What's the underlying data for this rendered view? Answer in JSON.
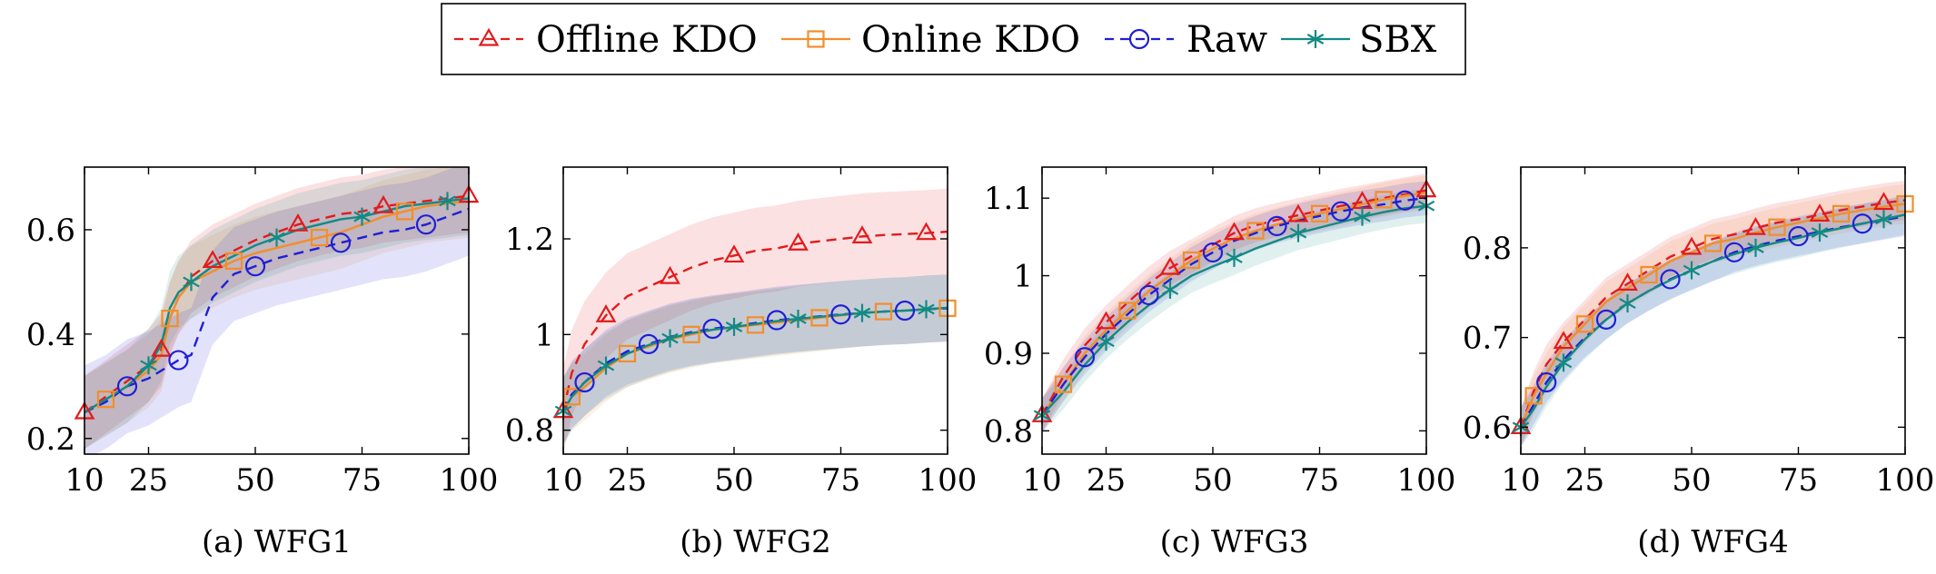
{
  "legend": {
    "items": [
      {
        "label": "Offline KDO",
        "color": "#e31a1c",
        "marker": "triangle",
        "dash": "dashed"
      },
      {
        "label": "Online KDO",
        "color": "#f28e2b",
        "marker": "square",
        "dash": "solid"
      },
      {
        "label": "Raw",
        "color": "#1f1fd6",
        "marker": "circle",
        "dash": "dashed"
      },
      {
        "label": "SBX",
        "color": "#138a84",
        "marker": "asterisk",
        "dash": "solid"
      }
    ]
  },
  "chart_data": [
    {
      "type": "line",
      "caption": "(a) WFG1",
      "xlim": [
        10,
        100
      ],
      "ylim": [
        0.17,
        0.72
      ],
      "xticks": [
        10,
        25,
        50,
        75,
        100
      ],
      "yticks": [
        0.2,
        0.4,
        0.6
      ],
      "x": [
        10,
        15,
        20,
        25,
        28,
        30,
        32,
        35,
        40,
        45,
        50,
        55,
        60,
        65,
        70,
        75,
        80,
        85,
        90,
        95,
        100
      ],
      "series": [
        {
          "name": "Offline KDO",
          "values": [
            0.25,
            0.28,
            0.31,
            0.34,
            0.37,
            0.43,
            0.47,
            0.51,
            0.54,
            0.56,
            0.58,
            0.595,
            0.61,
            0.62,
            0.63,
            0.635,
            0.645,
            0.65,
            0.655,
            0.66,
            0.665
          ],
          "band": 0.07
        },
        {
          "name": "Online KDO",
          "values": [
            0.25,
            0.275,
            0.3,
            0.33,
            0.36,
            0.43,
            0.47,
            0.5,
            0.52,
            0.54,
            0.555,
            0.565,
            0.575,
            0.585,
            0.595,
            0.61,
            0.625,
            0.635,
            0.645,
            0.65,
            0.655
          ],
          "band": 0.07
        },
        {
          "name": "Raw",
          "values": [
            0.25,
            0.27,
            0.3,
            0.315,
            0.33,
            0.34,
            0.35,
            0.36,
            0.47,
            0.515,
            0.53,
            0.545,
            0.555,
            0.565,
            0.575,
            0.585,
            0.595,
            0.6,
            0.61,
            0.625,
            0.64
          ],
          "band": 0.09
        },
        {
          "name": "SBX",
          "values": [
            0.25,
            0.275,
            0.3,
            0.34,
            0.38,
            0.45,
            0.48,
            0.5,
            0.53,
            0.55,
            0.57,
            0.585,
            0.6,
            0.61,
            0.62,
            0.625,
            0.635,
            0.645,
            0.65,
            0.655,
            0.66
          ],
          "band": 0.07
        }
      ]
    },
    {
      "type": "line",
      "caption": "(b) WFG2",
      "xlim": [
        10,
        100
      ],
      "ylim": [
        0.75,
        1.35
      ],
      "xticks": [
        10,
        25,
        50,
        75,
        100
      ],
      "yticks": [
        0.8,
        1,
        1.2
      ],
      "x": [
        10,
        12,
        15,
        20,
        25,
        30,
        35,
        40,
        45,
        50,
        55,
        60,
        65,
        70,
        75,
        80,
        85,
        90,
        95,
        100
      ],
      "series": [
        {
          "name": "Offline KDO",
          "values": [
            0.84,
            0.92,
            0.98,
            1.04,
            1.08,
            1.1,
            1.12,
            1.14,
            1.155,
            1.165,
            1.175,
            1.18,
            1.19,
            1.195,
            1.2,
            1.205,
            1.208,
            1.21,
            1.212,
            1.215
          ],
          "band": 0.09
        },
        {
          "name": "Online KDO",
          "values": [
            0.84,
            0.87,
            0.89,
            0.93,
            0.96,
            0.975,
            0.99,
            1.0,
            1.01,
            1.015,
            1.02,
            1.025,
            1.03,
            1.035,
            1.04,
            1.045,
            1.048,
            1.05,
            1.053,
            1.055
          ],
          "band": 0.07
        },
        {
          "name": "Raw",
          "values": [
            0.84,
            0.875,
            0.9,
            0.94,
            0.965,
            0.98,
            0.995,
            1.005,
            1.012,
            1.018,
            1.024,
            1.03,
            1.034,
            1.038,
            1.042,
            1.045,
            1.048,
            1.05,
            1.053,
            1.055
          ],
          "band": 0.07
        },
        {
          "name": "SBX",
          "values": [
            0.84,
            0.87,
            0.9,
            0.935,
            0.96,
            0.978,
            0.992,
            1.003,
            1.01,
            1.016,
            1.022,
            1.028,
            1.033,
            1.037,
            1.041,
            1.045,
            1.048,
            1.05,
            1.053,
            1.056
          ],
          "band": 0.07
        }
      ]
    },
    {
      "type": "line",
      "caption": "(c) WFG3",
      "xlim": [
        10,
        100
      ],
      "ylim": [
        0.77,
        1.14
      ],
      "xticks": [
        10,
        25,
        50,
        75,
        100
      ],
      "yticks": [
        0.8,
        0.9,
        1,
        1.1
      ],
      "x": [
        10,
        15,
        20,
        25,
        30,
        35,
        40,
        45,
        50,
        55,
        60,
        65,
        70,
        75,
        80,
        85,
        90,
        95,
        100
      ],
      "series": [
        {
          "name": "Offline KDO",
          "values": [
            0.82,
            0.87,
            0.91,
            0.94,
            0.965,
            0.99,
            1.01,
            1.025,
            1.04,
            1.055,
            1.065,
            1.072,
            1.078,
            1.084,
            1.09,
            1.095,
            1.1,
            1.105,
            1.11
          ],
          "band": 0.022
        },
        {
          "name": "Online KDO",
          "values": [
            0.82,
            0.86,
            0.9,
            0.93,
            0.955,
            0.98,
            1.0,
            1.02,
            1.035,
            1.048,
            1.058,
            1.066,
            1.073,
            1.08,
            1.086,
            1.092,
            1.098,
            1.103,
            1.107
          ],
          "band": 0.022
        },
        {
          "name": "Raw",
          "values": [
            0.82,
            0.86,
            0.895,
            0.925,
            0.95,
            0.975,
            0.995,
            1.015,
            1.03,
            1.045,
            1.055,
            1.064,
            1.071,
            1.077,
            1.083,
            1.088,
            1.092,
            1.097,
            1.1
          ],
          "band": 0.022
        },
        {
          "name": "SBX",
          "values": [
            0.82,
            0.85,
            0.885,
            0.915,
            0.94,
            0.962,
            0.982,
            1.0,
            1.012,
            1.023,
            1.035,
            1.045,
            1.055,
            1.062,
            1.069,
            1.076,
            1.082,
            1.087,
            1.09
          ],
          "band": 0.022
        }
      ]
    },
    {
      "type": "line",
      "caption": "(d) WFG4",
      "xlim": [
        10,
        100
      ],
      "ylim": [
        0.57,
        0.89
      ],
      "xticks": [
        10,
        25,
        50,
        75,
        100
      ],
      "yticks": [
        0.6,
        0.7,
        0.8
      ],
      "x": [
        10,
        13,
        16,
        20,
        25,
        30,
        35,
        40,
        45,
        50,
        55,
        60,
        65,
        70,
        75,
        80,
        85,
        90,
        95,
        100
      ],
      "series": [
        {
          "name": "Offline KDO",
          "values": [
            0.6,
            0.64,
            0.67,
            0.695,
            0.72,
            0.745,
            0.76,
            0.775,
            0.79,
            0.8,
            0.81,
            0.815,
            0.822,
            0.828,
            0.832,
            0.837,
            0.842,
            0.846,
            0.85,
            0.853
          ],
          "band": 0.022
        },
        {
          "name": "Online KDO",
          "values": [
            0.6,
            0.635,
            0.66,
            0.69,
            0.715,
            0.74,
            0.755,
            0.77,
            0.785,
            0.795,
            0.805,
            0.81,
            0.817,
            0.823,
            0.828,
            0.833,
            0.838,
            0.842,
            0.846,
            0.849
          ],
          "band": 0.022
        },
        {
          "name": "Raw",
          "values": [
            0.6,
            0.625,
            0.65,
            0.675,
            0.7,
            0.72,
            0.738,
            0.752,
            0.765,
            0.775,
            0.785,
            0.795,
            0.802,
            0.808,
            0.813,
            0.818,
            0.823,
            0.827,
            0.831,
            0.835
          ],
          "band": 0.022
        },
        {
          "name": "SBX",
          "values": [
            0.6,
            0.62,
            0.645,
            0.672,
            0.698,
            0.72,
            0.738,
            0.752,
            0.764,
            0.775,
            0.785,
            0.793,
            0.8,
            0.806,
            0.811,
            0.817,
            0.822,
            0.827,
            0.832,
            0.837
          ],
          "band": 0.022
        }
      ]
    }
  ]
}
